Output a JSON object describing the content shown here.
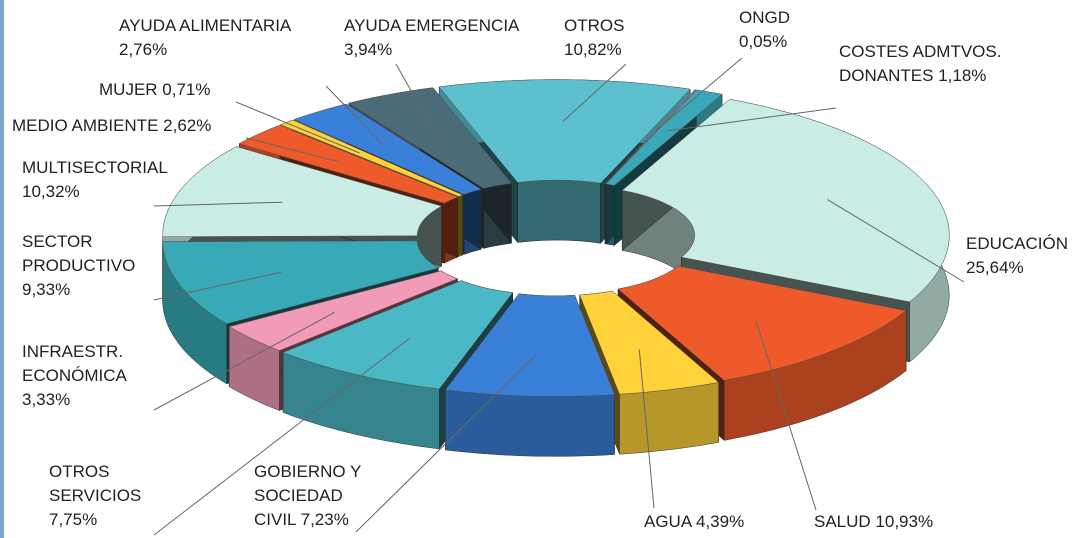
{
  "chart_data": {
    "type": "donut3d",
    "categories": [
      "EDUCACIÓN",
      "SALUD",
      "AGUA",
      "GOBIERNO Y SOCIEDAD CIVIL",
      "OTROS SERVICIOS",
      "INFRAESTR. ECONÓMICA",
      "SECTOR PRODUCTIVO",
      "MULTISECTORIAL",
      "MEDIO AMBIENTE",
      "MUJER",
      "AYUDA ALIMENTARIA",
      "AYUDA EMERGENCIA",
      "OTROS",
      "ONGD",
      "COSTES ADMTVOS. DONANTES"
    ],
    "values": [
      25.64,
      10.93,
      4.39,
      7.23,
      7.75,
      3.33,
      9.33,
      10.32,
      2.62,
      0.71,
      2.76,
      3.94,
      10.82,
      0.05,
      1.18
    ],
    "value_labels": [
      "25,64%",
      "10,93%",
      "4,39%",
      "7,23%",
      "7,75%",
      "3,33%",
      "9,33%",
      "10,32%",
      "2,62%",
      "0,71%",
      "2,76%",
      "3,94%",
      "10,82%",
      "0,05%",
      "1,18%"
    ],
    "colors": [
      "#c9ece4",
      "#ee5a2a",
      "#ffd23a",
      "#3a80d8",
      "#4ab8c5",
      "#f29bb8",
      "#38a9b6",
      "#c9ece4",
      "#ee5a2a",
      "#ffd23a",
      "#3a80d8",
      "#4c6b79",
      "#5cc0cf",
      "#f29bb8",
      "#3aa8b8"
    ]
  }
}
